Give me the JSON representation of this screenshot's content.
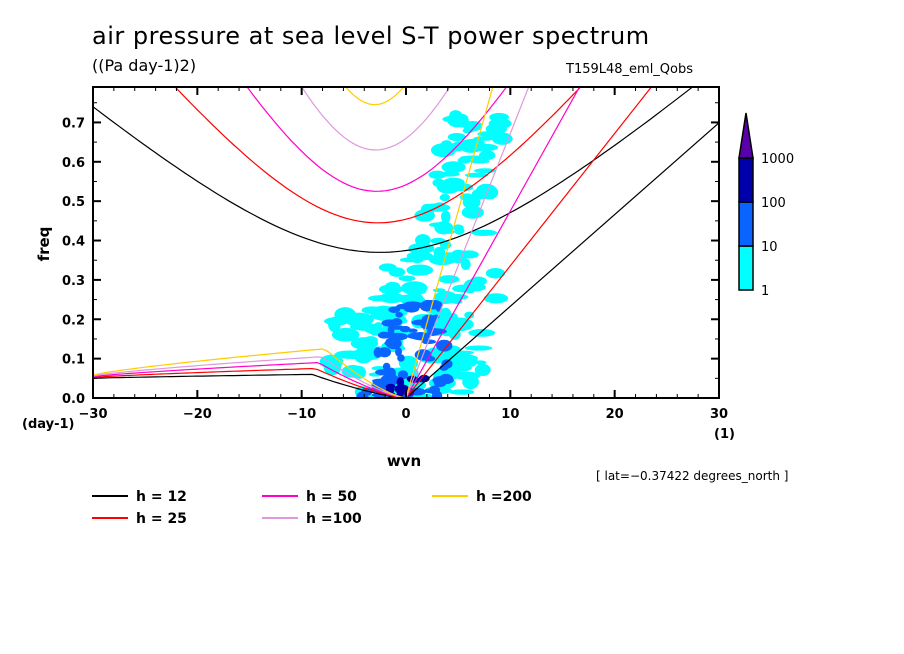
{
  "chart_data": {
    "type": "heatmap",
    "title": "air pressure at sea level S-T power spectrum",
    "units_label": "((Pa day-1)2)",
    "run_label": "T159L48_eml_Qobs",
    "xlabel": "wvn",
    "x_unit_label": "(1)",
    "ylabel": "freq",
    "y_unit_label": "(day-1)",
    "xlim": [
      -30,
      30
    ],
    "ylim": [
      0.0,
      0.79
    ],
    "x_ticks": [
      -30,
      -20,
      -10,
      0,
      10,
      20,
      30
    ],
    "x_tick_labels": [
      "−30",
      "−20",
      "−10",
      "0",
      "10",
      "20",
      "30"
    ],
    "y_ticks": [
      0.0,
      0.1,
      0.2,
      0.3,
      0.4,
      0.5,
      0.6,
      0.7
    ],
    "y_tick_labels": [
      "0.0",
      "0.1",
      "0.2",
      "0.3",
      "0.4",
      "0.5",
      "0.6",
      "0.7"
    ],
    "annotation": "[ lat=−0.37422 degrees_north ]",
    "colorbar": {
      "levels": [
        1,
        10,
        100,
        1000
      ],
      "level_labels": [
        "1",
        "10",
        "100",
        "1000"
      ],
      "colors": [
        "#00ffff",
        "#0a64ff",
        "#0000aa",
        "#5a00aa"
      ],
      "extend": "max"
    },
    "power_regions": [
      {
        "level": 1,
        "desc": "broad region wvn -10..12, freq 0..0.7, tilted toward positive wvn"
      },
      {
        "level": 10,
        "desc": "wvn -5..6, freq 0..0.25"
      },
      {
        "level": 100,
        "desc": "wvn -2..3, freq 0..0.05"
      },
      {
        "level": 1000,
        "desc": "wvn ~0, freq ~0.01"
      }
    ],
    "dispersion_curves": {
      "equivalent_depths_m": [
        12,
        25,
        50,
        100,
        200
      ],
      "colors": [
        "#000000",
        "#ff0000",
        "#ff00cc",
        "#dd99dd",
        "#ffcc00"
      ],
      "legend_labels": [
        "h = 12",
        "h = 25",
        "h = 50",
        "h =100",
        "h =200"
      ],
      "series": [
        {
          "name": "h = 12",
          "kelvin_slope": 0.0233,
          "ig_min_freq": 0.37,
          "ig_min_wvn": -2.5,
          "mrg_peak": 0.06
        },
        {
          "name": "h = 25",
          "kelvin_slope": 0.0336,
          "ig_min_freq": 0.445,
          "ig_min_wvn": -2.7,
          "mrg_peak": 0.075
        },
        {
          "name": "h = 50",
          "kelvin_slope": 0.0475,
          "ig_min_freq": 0.525,
          "ig_min_wvn": -2.8,
          "mrg_peak": 0.09
        },
        {
          "name": "h =100",
          "kelvin_slope": 0.0672,
          "ig_min_freq": 0.63,
          "ig_min_wvn": -2.9,
          "mrg_peak": 0.105
        },
        {
          "name": "h =200",
          "kelvin_slope": 0.095,
          "ig_min_freq": 0.745,
          "ig_min_wvn": -3.0,
          "mrg_peak": 0.125
        }
      ]
    },
    "legend_position": "bottom-left"
  }
}
